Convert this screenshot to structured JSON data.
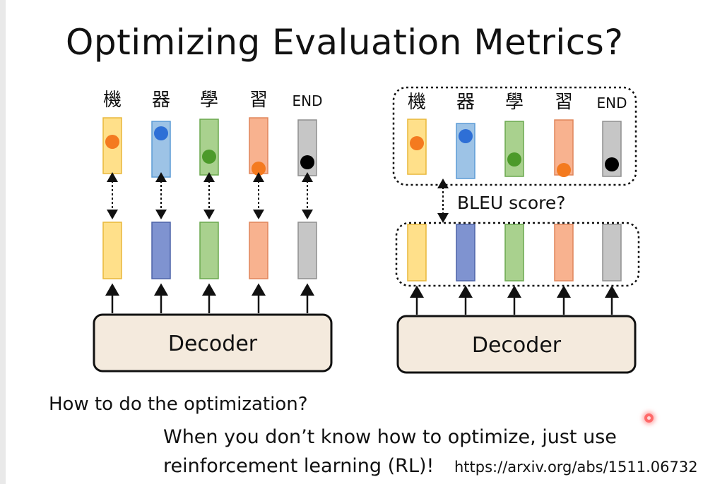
{
  "slide": {
    "title": "Optimizing Evaluation Metrics?"
  },
  "diagram": {
    "output_tokens": [
      "機",
      "器",
      "學",
      "習",
      "END"
    ],
    "decoder_label": "Decoder",
    "metric_label": "BLEU score?",
    "colors": {
      "yellow_fill": "#ffe08a",
      "yellow_stroke": "#e8b73a",
      "blue_fill": "#9dc3e6",
      "blue_stroke": "#5b9bd5",
      "dark_blue_fill": "#7f93d0",
      "dark_blue_stroke": "#4d63a8",
      "green_fill": "#a9d18e",
      "green_stroke": "#6aa84f",
      "orange_fill": "#f8b28f",
      "orange_stroke": "#e0855a",
      "gray_fill": "#c6c6c6",
      "gray_stroke": "#8f8f8f",
      "decoder_fill": "#f4eadd",
      "dot_orange": "#f47a1f",
      "dot_blue": "#2e6fd6",
      "dot_green": "#4c9a2a",
      "dot_black": "#000000"
    }
  },
  "question": "How to do the optimization?",
  "answer_line_1": "When you don’t know how to optimize, just use",
  "answer_line_2": "reinforcement learning (RL)!",
  "reference": "https://arxiv.org/abs/1511.06732"
}
